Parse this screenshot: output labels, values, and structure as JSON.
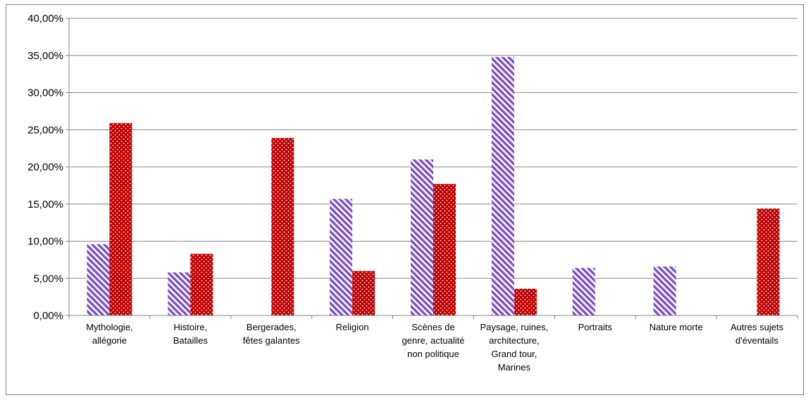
{
  "chart_data": {
    "type": "bar",
    "title": "",
    "xlabel": "",
    "ylabel": "",
    "ylim": [
      0,
      40
    ],
    "ytick_values": [
      0,
      5,
      10,
      15,
      20,
      25,
      30,
      35,
      40
    ],
    "ytick_labels": [
      "0,00%",
      "5,00%",
      "10,00%",
      "15,00%",
      "20,00%",
      "25,00%",
      "30,00%",
      "35,00%",
      "40,00%"
    ],
    "grid": true,
    "legend": "none",
    "categories": [
      [
        "Mythologie,",
        "allégorie"
      ],
      [
        "Histoire,",
        "Batailles"
      ],
      [
        "Bergerades,",
        "fêtes galantes"
      ],
      [
        "Religion"
      ],
      [
        "Scènes de",
        "genre, actualité",
        "non politique"
      ],
      [
        "Paysage, ruines,",
        "architecture,",
        "Grand tour,",
        "Marines"
      ],
      [
        "Portraits"
      ],
      [
        "Nature morte"
      ],
      [
        "Autres sujets",
        "d'éventails"
      ]
    ],
    "series": [
      {
        "values": [
          9.6,
          5.8,
          0,
          15.7,
          21.0,
          34.8,
          6.4,
          6.6,
          0
        ],
        "color": "#7b4fc4",
        "pattern": "diagonal-stripes"
      },
      {
        "values": [
          25.9,
          8.3,
          23.9,
          6.0,
          17.7,
          3.6,
          0,
          0,
          14.4
        ],
        "color": "#c00000",
        "pattern": "dotted"
      }
    ]
  }
}
